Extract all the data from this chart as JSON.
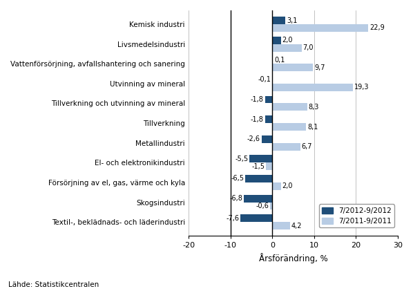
{
  "categories": [
    "Textil-, beklädnads- och läderindustri",
    "Skogsindustri",
    "Försörjning av el, gas, värme och kyla",
    "El- och elektronikindustri",
    "Metallindustri",
    "Tillverkning",
    "Tillverkning och utvinning av mineral",
    "Utvinning av mineral",
    "Vattenförsörjning, avfallshantering och sanering",
    "Livsmedelsindustri",
    "Kemisk industri"
  ],
  "values_2012": [
    -7.6,
    -6.8,
    -6.5,
    -5.5,
    -2.6,
    -1.8,
    -1.8,
    -0.1,
    0.1,
    2.0,
    3.1
  ],
  "values_2011": [
    4.2,
    -0.6,
    2.0,
    -1.5,
    6.7,
    8.1,
    8.3,
    19.3,
    9.7,
    7.0,
    22.9
  ],
  "labels_2012": [
    "-7,6",
    "-6,8",
    "-6,5",
    "-5,5",
    "-2,6",
    "-1,8",
    "-1,8",
    "-0,1",
    "0,1",
    "2,0",
    "3,1"
  ],
  "labels_2011": [
    "4,2",
    "-0,6",
    "2,0",
    "-1,5",
    "6,7",
    "8,1",
    "8,3",
    "19,3",
    "9,7",
    "7,0",
    "22,9"
  ],
  "color_2012": "#1F4E79",
  "color_2011": "#B8CCE4",
  "xlabel": "Årsförändring, %",
  "xlim": [
    -20,
    30
  ],
  "xticks": [
    -20,
    -10,
    0,
    10,
    20,
    30
  ],
  "xtick_labels": [
    "-20",
    "-10",
    "0",
    "10",
    "20",
    "30"
  ],
  "legend_2012": "7/2012-9/2012",
  "legend_2011": "7/2011-9/2011",
  "source": "Lähde: Statistikcentralen",
  "bar_height": 0.38
}
